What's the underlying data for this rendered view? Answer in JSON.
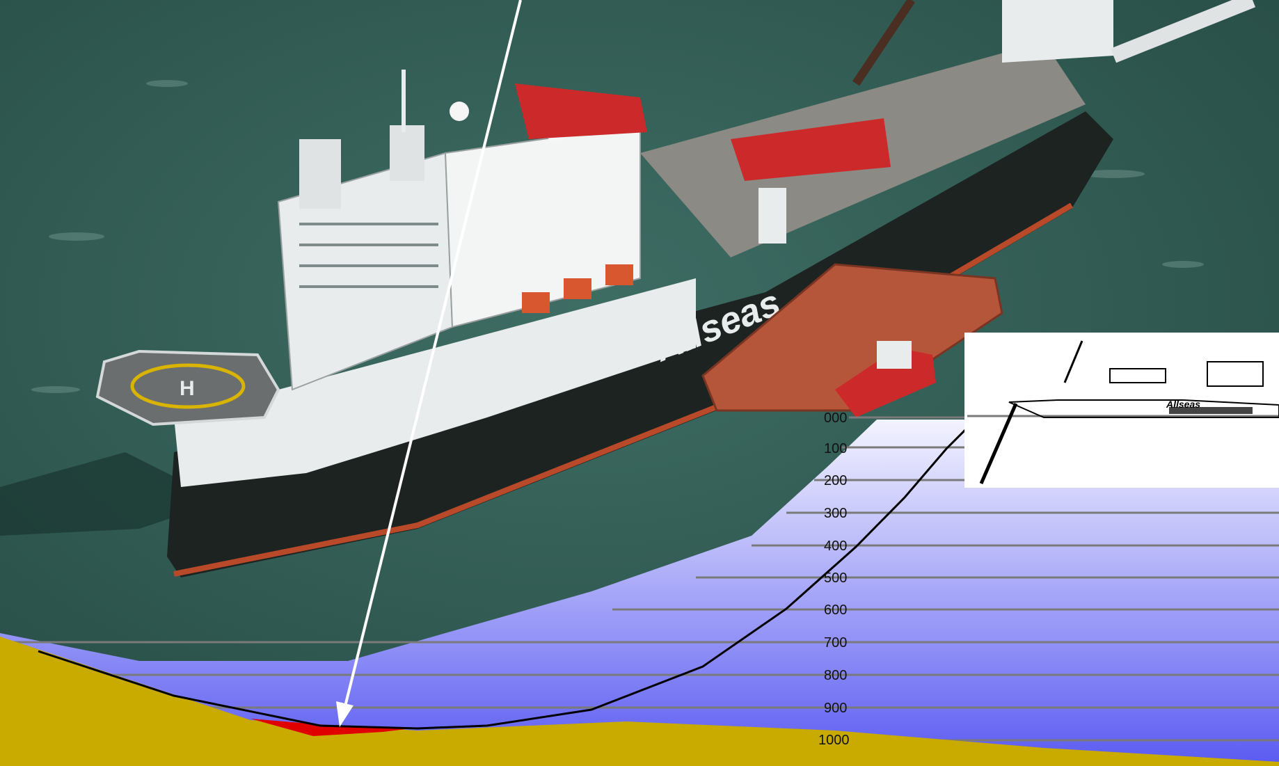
{
  "colors": {
    "sea_surface": "#2f5a52",
    "water_light": "#f3f3ff",
    "water_deep": "#5a5af2",
    "seabed": "#c9ab00",
    "depth_gridline": "#7a7a7a",
    "pipeline": "#000000",
    "span_highlight": "#e00000",
    "pointer_arrow": "#ffffff",
    "hull_dark": "#1d2321",
    "superstructure": "#e9ecec",
    "crane_red": "#cc2a2a",
    "barge": "#b5553a"
  },
  "vessel": {
    "hull_logo": "Allseas",
    "inset_logo": "Allseas"
  },
  "depth_scale": {
    "labels": [
      "000",
      "100",
      "200",
      "300",
      "400",
      "500",
      "600",
      "700",
      "800",
      "900",
      "1000"
    ]
  }
}
